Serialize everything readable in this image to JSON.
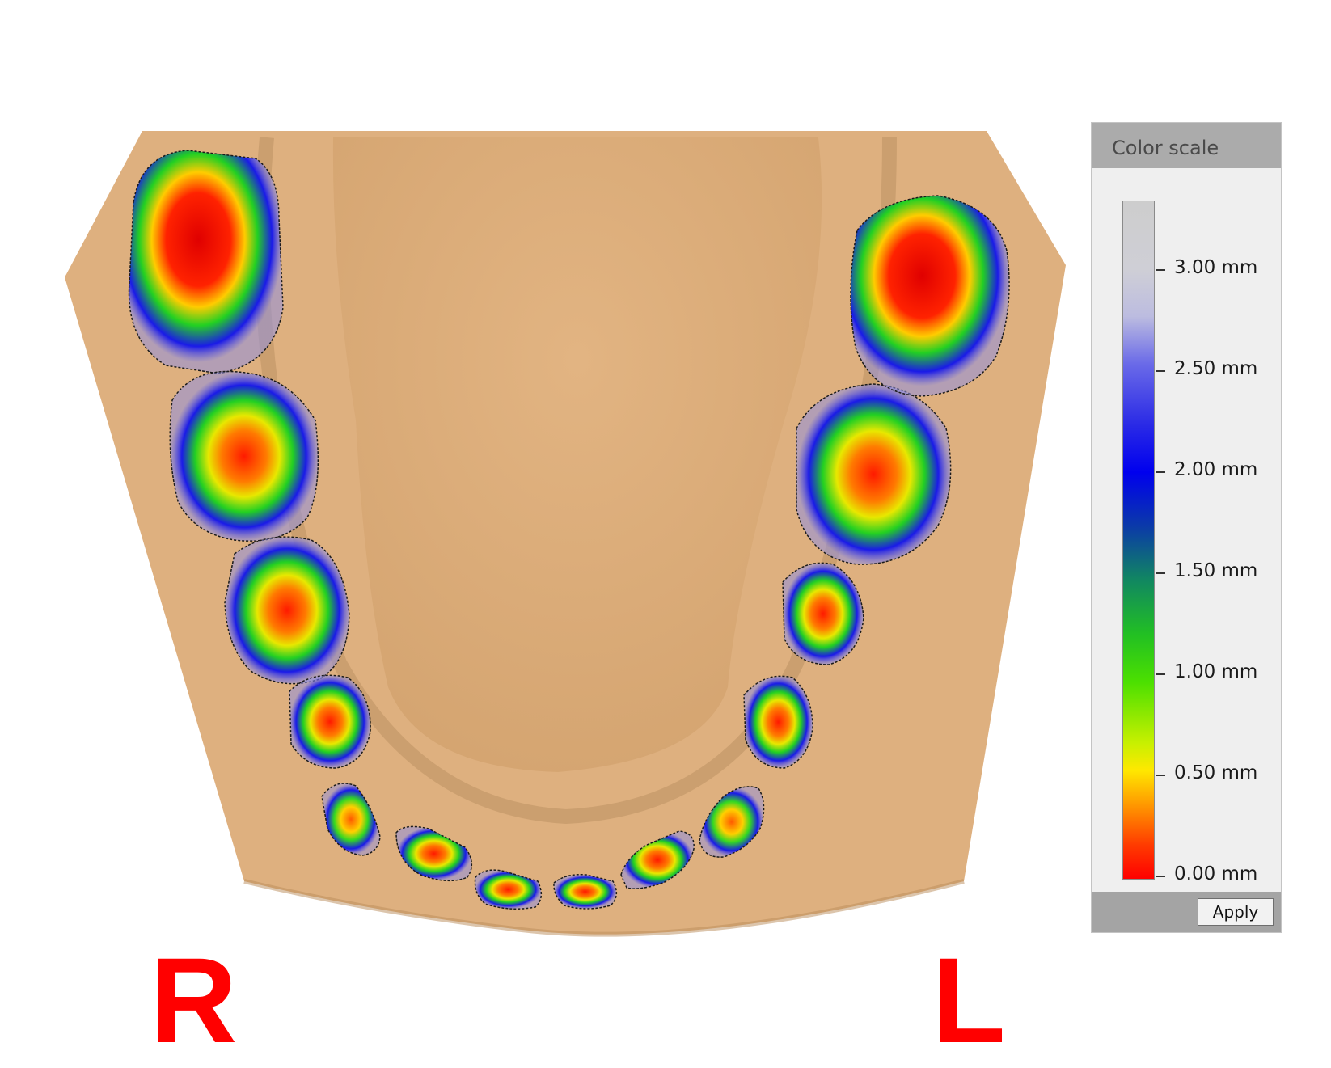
{
  "labels": {
    "right": "R",
    "left": "L"
  },
  "color_scale": {
    "title": "Color scale",
    "ticks": [
      "3.00 mm",
      "2.50 mm",
      "2.00 mm",
      "1.50 mm",
      "1.00 mm",
      "0.50 mm",
      "0.00 mm"
    ],
    "apply_label": "Apply"
  },
  "colors": {
    "model": "#deb07f",
    "model_shadow": "#a98154",
    "contact_red": "#ff0000",
    "contact_yellow": "#ffe800",
    "contact_green": "#22d022",
    "contact_blue": "#1a1ae8",
    "label_red": "#ff0000"
  }
}
